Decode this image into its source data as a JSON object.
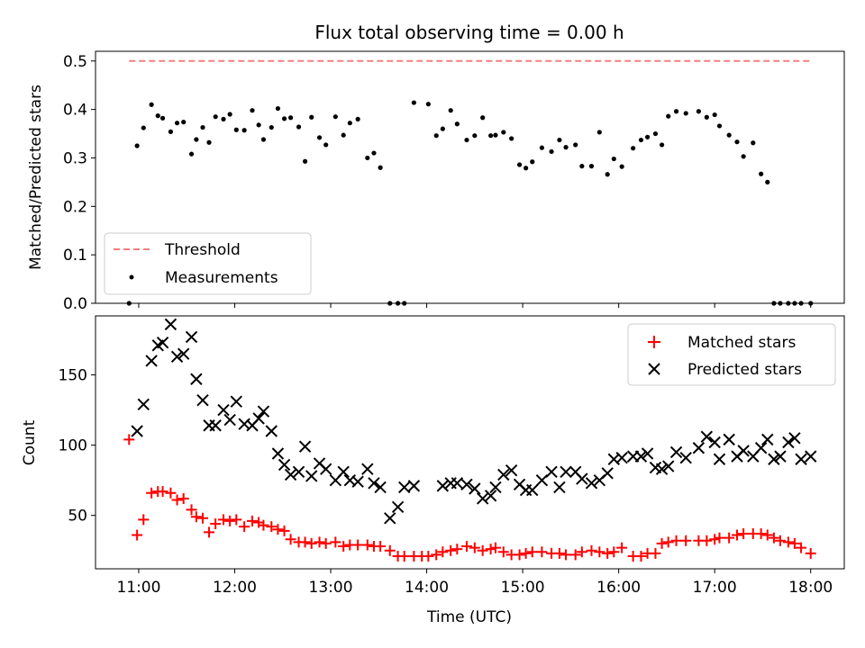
{
  "title": "Flux total observing time = 0.00 h",
  "colors": {
    "threshold": "#f08080",
    "measurement": "#000000",
    "matched": "#ff0000",
    "predicted": "#000000"
  },
  "chart_data": [
    {
      "type": "scatter",
      "ylabel": "Matched/Predicted stars",
      "ylim": [
        0,
        0.52
      ],
      "xlim": [
        10.55,
        18.35
      ],
      "yticks": [
        "0.0",
        "0.1",
        "0.2",
        "0.3",
        "0.4",
        "0.5"
      ],
      "legend_position": "lower-left",
      "threshold": {
        "name": "Threshold",
        "y": 0.5,
        "x": [
          10.9,
          18.0
        ]
      },
      "series": [
        {
          "name": "Measurements",
          "x": [
            10.9,
            10.983,
            11.05,
            11.133,
            11.2,
            11.25,
            11.333,
            11.4,
            11.467,
            11.55,
            11.6,
            11.667,
            11.733,
            11.8,
            11.883,
            11.95,
            12.017,
            12.1,
            12.183,
            12.25,
            12.3,
            12.383,
            12.45,
            12.517,
            12.583,
            12.667,
            12.733,
            12.8,
            12.883,
            12.95,
            13.05,
            13.133,
            13.2,
            13.283,
            13.383,
            13.45,
            13.517,
            13.617,
            13.7,
            13.767,
            13.867,
            14.017,
            14.1,
            14.167,
            14.25,
            14.317,
            14.417,
            14.5,
            14.583,
            14.667,
            14.717,
            14.8,
            14.883,
            14.967,
            15.033,
            15.1,
            15.2,
            15.3,
            15.383,
            15.45,
            15.55,
            15.617,
            15.717,
            15.8,
            15.883,
            15.95,
            16.033,
            16.15,
            16.233,
            16.3,
            16.383,
            16.45,
            16.517,
            16.6,
            16.7,
            16.833,
            16.917,
            17.0,
            17.05,
            17.15,
            17.233,
            17.3,
            17.4,
            17.483,
            17.55,
            17.617,
            17.683,
            17.767,
            17.833,
            17.9,
            18.0
          ],
          "y": [
            0.0,
            0.325,
            0.362,
            0.41,
            0.387,
            0.382,
            0.354,
            0.372,
            0.374,
            0.308,
            0.338,
            0.363,
            0.332,
            0.385,
            0.38,
            0.39,
            0.358,
            0.357,
            0.398,
            0.368,
            0.338,
            0.363,
            0.402,
            0.381,
            0.383,
            0.364,
            0.293,
            0.384,
            0.342,
            0.327,
            0.385,
            0.347,
            0.372,
            0.38,
            0.3,
            0.31,
            0.28,
            0.0,
            0.0,
            0.0,
            0.414,
            0.411,
            0.346,
            0.36,
            0.398,
            0.37,
            0.337,
            0.346,
            0.383,
            0.346,
            0.347,
            0.353,
            0.34,
            0.286,
            0.279,
            0.292,
            0.321,
            0.313,
            0.337,
            0.322,
            0.327,
            0.283,
            0.283,
            0.353,
            0.266,
            0.298,
            0.282,
            0.32,
            0.337,
            0.343,
            0.35,
            0.327,
            0.386,
            0.396,
            0.392,
            0.396,
            0.384,
            0.389,
            0.366,
            0.347,
            0.333,
            0.303,
            0.331,
            0.267,
            0.25,
            0.0,
            0.0,
            0.0,
            0.0,
            0.0,
            0.0
          ]
        }
      ]
    },
    {
      "type": "scatter",
      "xlabel": "Time (UTC)",
      "ylabel": "Count",
      "ylim": [
        12,
        192
      ],
      "xlim": [
        10.55,
        18.35
      ],
      "yticks": [
        "50",
        "100",
        "150"
      ],
      "xticks": [
        "11:00",
        "12:00",
        "13:00",
        "14:00",
        "15:00",
        "16:00",
        "17:00",
        "18:00"
      ],
      "legend_position": "upper-right",
      "series": [
        {
          "name": "Matched stars",
          "marker": "plus",
          "x": [
            10.9,
            10.983,
            11.05,
            11.133,
            11.2,
            11.25,
            11.333,
            11.4,
            11.467,
            11.55,
            11.6,
            11.667,
            11.733,
            11.8,
            11.883,
            11.95,
            12.017,
            12.1,
            12.183,
            12.25,
            12.3,
            12.383,
            12.45,
            12.517,
            12.583,
            12.667,
            12.733,
            12.8,
            12.883,
            12.95,
            13.05,
            13.133,
            13.2,
            13.283,
            13.383,
            13.45,
            13.517,
            13.617,
            13.7,
            13.767,
            13.867,
            13.95,
            14.017,
            14.1,
            14.167,
            14.25,
            14.317,
            14.417,
            14.5,
            14.583,
            14.667,
            14.717,
            14.8,
            14.883,
            14.967,
            15.033,
            15.1,
            15.2,
            15.3,
            15.383,
            15.45,
            15.55,
            15.617,
            15.717,
            15.8,
            15.883,
            15.95,
            16.033,
            16.15,
            16.233,
            16.3,
            16.383,
            16.45,
            16.517,
            16.6,
            16.7,
            16.833,
            16.917,
            17.0,
            17.05,
            17.15,
            17.233,
            17.3,
            17.4,
            17.483,
            17.55,
            17.617,
            17.683,
            17.767,
            17.833,
            17.9,
            18.0
          ],
          "y": [
            104,
            36,
            47,
            66,
            67,
            67,
            66,
            61,
            62,
            54,
            49,
            48,
            38,
            44,
            47,
            46,
            47,
            42,
            46,
            45,
            43,
            42,
            40,
            39,
            33,
            31,
            31,
            30,
            31,
            30,
            31,
            28,
            29,
            29,
            29,
            28,
            28,
            25,
            21,
            21,
            21,
            21,
            21,
            22,
            24,
            25,
            26,
            28,
            27,
            25,
            26,
            27,
            24,
            22,
            22,
            23,
            24,
            24,
            23,
            23,
            22,
            22,
            24,
            25,
            24,
            23,
            24,
            27,
            21,
            21,
            23,
            23,
            30,
            31,
            32,
            32,
            32,
            32,
            33,
            34,
            34,
            36,
            37,
            37,
            37,
            36,
            34,
            32,
            31,
            30,
            27,
            23
          ]
        },
        {
          "name": "Predicted stars",
          "marker": "x",
          "x": [
            10.983,
            11.05,
            11.133,
            11.2,
            11.25,
            11.333,
            11.4,
            11.467,
            11.55,
            11.6,
            11.667,
            11.733,
            11.8,
            11.883,
            11.95,
            12.017,
            12.1,
            12.183,
            12.25,
            12.3,
            12.383,
            12.45,
            12.517,
            12.583,
            12.667,
            12.733,
            12.8,
            12.883,
            12.95,
            13.05,
            13.133,
            13.2,
            13.283,
            13.383,
            13.45,
            13.517,
            13.617,
            13.7,
            13.767,
            13.867,
            14.167,
            14.25,
            14.317,
            14.417,
            14.5,
            14.583,
            14.667,
            14.717,
            14.8,
            14.883,
            14.967,
            15.033,
            15.1,
            15.2,
            15.3,
            15.383,
            15.45,
            15.55,
            15.617,
            15.717,
            15.8,
            15.883,
            15.95,
            16.033,
            16.15,
            16.233,
            16.3,
            16.383,
            16.45,
            16.517,
            16.6,
            16.7,
            16.833,
            16.917,
            17.0,
            17.05,
            17.15,
            17.233,
            17.3,
            17.4,
            17.483,
            17.55,
            17.617,
            17.683,
            17.767,
            17.833,
            17.9,
            18.0
          ],
          "y": [
            110,
            129,
            160,
            171,
            173,
            186,
            163,
            165,
            177,
            147,
            132,
            114,
            114,
            125,
            118,
            131,
            115,
            114,
            119,
            124,
            110,
            94,
            86,
            79,
            81,
            99,
            78,
            87,
            83,
            75,
            81,
            75,
            74,
            83,
            73,
            70,
            48,
            56,
            70,
            71,
            71,
            73,
            73,
            72,
            69,
            62,
            64,
            70,
            79,
            82,
            72,
            68,
            68,
            75,
            81,
            70,
            81,
            81,
            76,
            73,
            75,
            80,
            90,
            91,
            92,
            92,
            94,
            84,
            83,
            85,
            95,
            91,
            98,
            106,
            102,
            90,
            104,
            92,
            96,
            92,
            98,
            104,
            90,
            92,
            102,
            105,
            90,
            92
          ]
        }
      ]
    }
  ]
}
